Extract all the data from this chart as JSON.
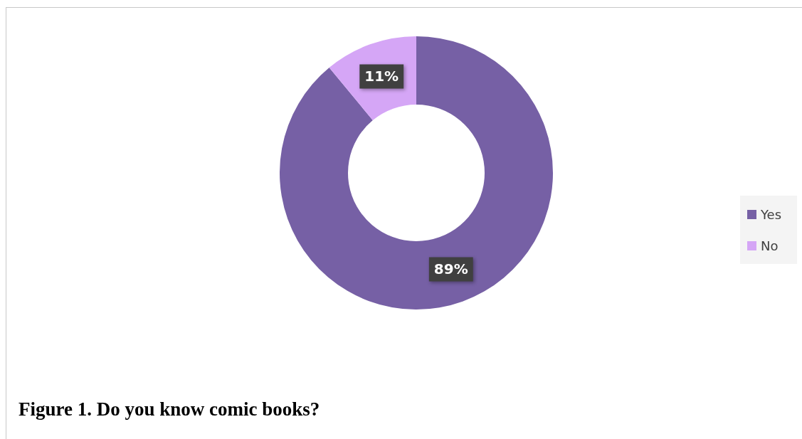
{
  "chart_data": {
    "type": "donut",
    "title": "Figure 1. Do you know comic books?",
    "categories": [
      "Yes",
      "No"
    ],
    "values": [
      89,
      11
    ],
    "colors": [
      "#7660a5",
      "#d5a6f6"
    ],
    "value_labels": [
      "89%",
      "11%"
    ],
    "legend": "right"
  }
}
